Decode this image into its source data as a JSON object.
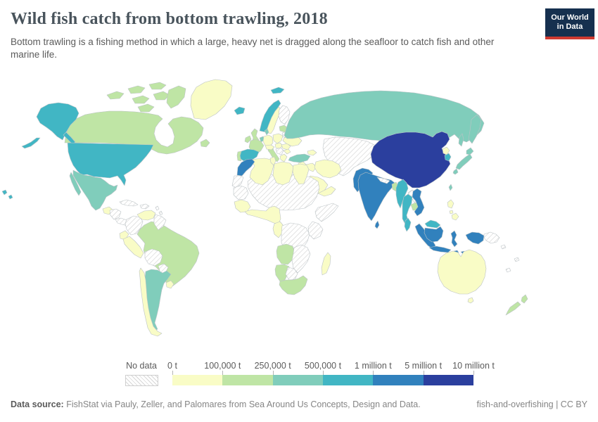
{
  "header": {
    "title": "Wild fish catch from bottom trawling, 2018",
    "subtitle": "Bottom trawling is a fishing method in which a large, heavy net is dragged along the seafloor to catch fish and other marine life."
  },
  "logo": {
    "line1": "Our World",
    "line2": "in Data",
    "bg_color": "#16304f",
    "accent_color": "#cf3a31"
  },
  "legend": {
    "no_data_label": "No data",
    "tick_labels": [
      "0 t",
      "100,000 t",
      "250,000 t",
      "500,000 t",
      "1 million t",
      "5 million t",
      "10 million t"
    ],
    "bin_colors": [
      "#f9fcc6",
      "#bfe5a5",
      "#80cdbb",
      "#41b6c4",
      "#3181bd",
      "#2b3f9e"
    ],
    "no_data_pattern": "diagonal-hatch"
  },
  "footer": {
    "source_label": "Data source:",
    "source_text": "FishStat via Pauly, Zeller, and Palomares from Sea Around Us Concepts, Design and Data.",
    "right_text": "fish-and-overfishing | CC BY"
  },
  "chart_data": {
    "type": "choropleth_map",
    "title": "Wild fish catch from bottom trawling, 2018",
    "year": 2018,
    "unit": "tonnes",
    "bins": [
      "0 t – 100,000 t",
      "100,000 t – 250,000 t",
      "250,000 t – 500,000 t",
      "500,000 t – 1 million t",
      "1 million t – 5 million t",
      "5 million t – 10 million t"
    ],
    "no_data": "hatched",
    "legend_position": "bottom",
    "country_bins": {
      "usa": 4,
      "canada": 2,
      "greenland": 1,
      "mexico": 3,
      "guatemala-belize": 1,
      "honduras-nicaragua": 0,
      "costa-rica-panama": 0,
      "cuba": 0,
      "hispaniola": 0,
      "lesser-antilles": 0,
      "colombia": 0,
      "venezuela": 1,
      "guyanas": 0,
      "ecuador": 1,
      "peru": 1,
      "brazil": 2,
      "bolivia": 0,
      "paraguay": 0,
      "chile": 1,
      "argentina": 3,
      "uruguay": 1,
      "iceland": 4,
      "norway": 4,
      "sweden": 1,
      "finland": 0,
      "baltics": 2,
      "belarus": 0,
      "united-kingdom": 2,
      "ireland": 2,
      "denmark": 3,
      "benelux": 3,
      "germany": 1,
      "france": 2,
      "spain": 4,
      "portugal": 2,
      "italy": 2,
      "alpine-states": 1,
      "poland": 1,
      "central-europe": 1,
      "balkans": 0,
      "greece": 1,
      "romania": 1,
      "bulgaria": 1,
      "ukraine": 1,
      "caucasus": 1,
      "russia": 3,
      "central-asia": 0,
      "turkey": 3,
      "levant": 1,
      "iraq": 1,
      "iran": 1,
      "saudi-arabia": 1,
      "yemen-oman": 1,
      "morocco": 5,
      "western-sahara": 0,
      "mauritania": 0,
      "algeria": 1,
      "tunisia": 1,
      "libya": 1,
      "egypt": 1,
      "sahel-sudan": 0,
      "senegal-guinea": 1,
      "west-africa-coast": 1,
      "cameroon-gabon": 1,
      "central-africa": 0,
      "horn-of-africa": 0,
      "east-africa": 0,
      "angola": 2,
      "zambia-mozambique": 0,
      "namibia": 2,
      "botswana": 0,
      "south-africa": 2,
      "madagascar": 1,
      "china": 6,
      "mongolia": 0,
      "north-korea": 1,
      "south-korea": 4,
      "japan": 3,
      "taiwan": 3,
      "pakistan": 5,
      "india": 5,
      "nepal": 0,
      "bangladesh": 2,
      "sri-lanka": 5,
      "myanmar": 4,
      "thailand": 4,
      "laos": 0,
      "cambodia": 2,
      "vietnam": 5,
      "malaysia": 4,
      "indonesia": 5,
      "papua-new-guinea": 0,
      "philippines": 1,
      "australia": 1,
      "new-zealand": 2,
      "pacific-islands": 0
    }
  }
}
